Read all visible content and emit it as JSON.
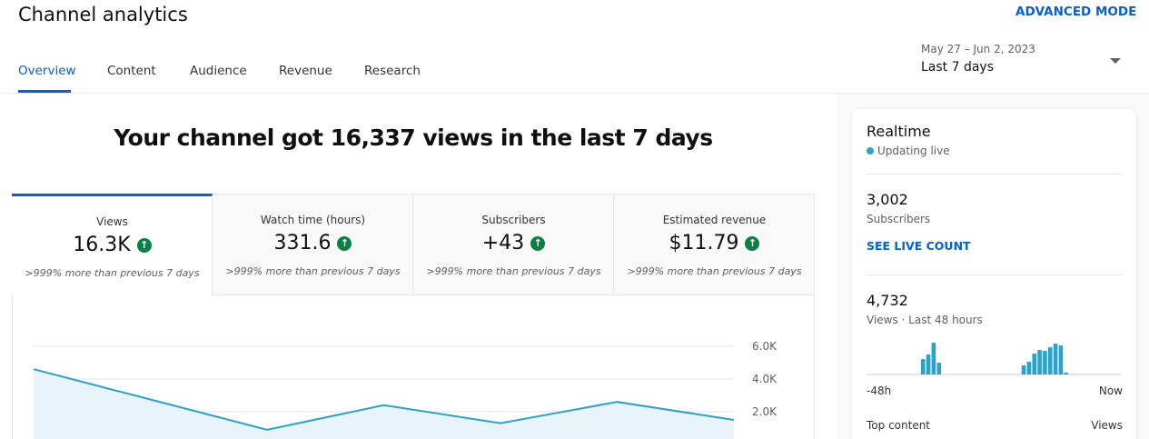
{
  "header": {
    "title": "Channel analytics",
    "advanced_mode": "ADVANCED MODE"
  },
  "tabs": [
    "Overview",
    "Content",
    "Audience",
    "Revenue",
    "Research"
  ],
  "date_range": {
    "dates": "May 27 – Jun 2, 2023",
    "label": "Last 7 days"
  },
  "headline": "Your channel got 16,337 views in the last 7 days",
  "metrics": [
    {
      "label": "Views",
      "value": "16.3K",
      "comparison": ">999% more than previous 7 days"
    },
    {
      "label": "Watch time (hours)",
      "value": "331.6",
      "comparison": ">999% more than previous 7 days"
    },
    {
      "label": "Subscribers",
      "value": "+43",
      "comparison": ">999% more than previous 7 days"
    },
    {
      "label": "Estimated revenue",
      "value": "$11.79",
      "comparison": ">999% more than previous 7 days"
    }
  ],
  "chart_data": [
    {
      "type": "line",
      "categories": [
        null,
        null,
        null,
        null,
        null,
        null,
        null
      ],
      "series": [
        {
          "color": "#2ea1c9",
          "values": [
            4600,
            2750,
            900,
            2400,
            1300,
            2600,
            1500
          ]
        }
      ],
      "ylim": [
        0,
        6000
      ],
      "yticks": [
        {
          "value": 6000,
          "label": "6.0K"
        },
        {
          "value": 4000,
          "label": "4.0K"
        },
        {
          "value": 2000,
          "label": "2.0K"
        }
      ],
      "grid": true
    },
    {
      "type": "bar",
      "categories": [
        "-48h",
        null,
        null,
        null,
        null,
        null,
        null,
        null,
        null,
        null,
        null,
        null,
        null,
        null,
        null,
        null,
        null,
        null,
        null,
        null,
        null,
        null,
        null,
        null,
        null,
        null,
        null,
        null,
        null,
        null,
        null,
        null,
        null,
        null,
        null,
        null,
        null,
        null,
        null,
        null,
        null,
        null,
        null,
        null,
        null,
        null,
        null,
        "Now"
      ],
      "values": [
        0,
        0,
        0,
        0,
        0,
        0,
        0,
        0,
        0,
        0,
        282,
        365,
        581,
        216,
        0,
        0,
        0,
        0,
        0,
        0,
        0,
        0,
        0,
        0,
        0,
        0,
        0,
        0,
        0,
        166,
        232,
        382,
        448,
        432,
        498,
        564,
        531,
        33,
        0,
        0,
        0,
        0,
        0,
        0,
        0,
        0,
        0,
        0
      ],
      "color": "#2ea1c9",
      "ylim": [
        0,
        1000
      ]
    }
  ],
  "realtime": {
    "title": "Realtime",
    "status": "Updating live",
    "subscribers": {
      "value": "3,002",
      "label": "Subscribers",
      "link": "SEE LIVE COUNT"
    },
    "views": {
      "value": "4,732",
      "label": "Views · Last 48 hours"
    },
    "top_content": {
      "label": "Top content",
      "column": "Views"
    }
  }
}
